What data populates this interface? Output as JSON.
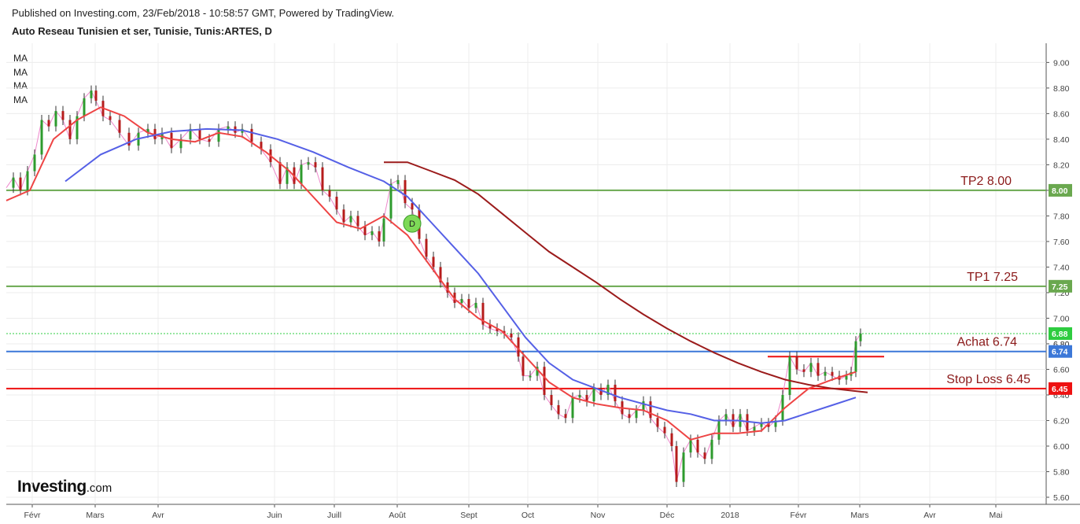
{
  "header": {
    "published": "Published on Investing.com, 23/Feb/2018 - 10:58:57 GMT, Powered by TradingView.",
    "title": "Auto Reseau Tunisien et ser, Tunisie, Tunis:ARTES, D"
  },
  "ma_labels": [
    "MA",
    "MA",
    "MA",
    "MA"
  ],
  "logo": {
    "brand": "Investing",
    "domain": ".com"
  },
  "chart_data": {
    "type": "candlestick",
    "ylim": [
      5.52,
      9.15
    ],
    "y_ticks": [
      "5.60",
      "5.80",
      "6.00",
      "6.20",
      "6.40",
      "6.60",
      "6.80",
      "7.00",
      "7.20",
      "7.40",
      "7.60",
      "7.80",
      "8.00",
      "8.20",
      "8.40",
      "8.60",
      "8.80",
      "9.00"
    ],
    "x_ticks": [
      "Févr",
      "Mars",
      "Avr",
      "Juin",
      "Juill",
      "Août",
      "Sept",
      "Oct",
      "Nov",
      "Déc",
      "2018",
      "Févr",
      "Mars",
      "Avr",
      "Mai"
    ],
    "price_path": [
      [
        0,
        8.02
      ],
      [
        3,
        8.1
      ],
      [
        6,
        8.0
      ],
      [
        9,
        8.15
      ],
      [
        12,
        8.28
      ],
      [
        15,
        8.55
      ],
      [
        18,
        8.5
      ],
      [
        21,
        8.62
      ],
      [
        24,
        8.55
      ],
      [
        27,
        8.4
      ],
      [
        30,
        8.58
      ],
      [
        33,
        8.72
      ],
      [
        36,
        8.78
      ],
      [
        38,
        8.7
      ],
      [
        41,
        8.58
      ],
      [
        44,
        8.55
      ],
      [
        48,
        8.45
      ],
      [
        52,
        8.35
      ],
      [
        56,
        8.45
      ],
      [
        60,
        8.48
      ],
      [
        63,
        8.4
      ],
      [
        66,
        8.45
      ],
      [
        70,
        8.33
      ],
      [
        74,
        8.4
      ],
      [
        78,
        8.48
      ],
      [
        82,
        8.4
      ],
      [
        86,
        8.38
      ],
      [
        90,
        8.48
      ],
      [
        94,
        8.5
      ],
      [
        97,
        8.45
      ],
      [
        100,
        8.48
      ],
      [
        104,
        8.38
      ],
      [
        108,
        8.32
      ],
      [
        112,
        8.22
      ],
      [
        116,
        8.05
      ],
      [
        119,
        8.18
      ],
      [
        122,
        8.05
      ],
      [
        125,
        8.2
      ],
      [
        128,
        8.22
      ],
      [
        131,
        8.18
      ],
      [
        134,
        8.0
      ],
      [
        137,
        7.95
      ],
      [
        140,
        7.85
      ],
      [
        143,
        7.75
      ],
      [
        146,
        7.8
      ],
      [
        149,
        7.72
      ],
      [
        152,
        7.65
      ],
      [
        155,
        7.68
      ],
      [
        158,
        7.6
      ],
      [
        160,
        7.78
      ],
      [
        163,
        8.05
      ],
      [
        166,
        8.08
      ],
      [
        169,
        7.9
      ],
      [
        172,
        7.85
      ],
      [
        175,
        7.62
      ],
      [
        178,
        7.48
      ],
      [
        181,
        7.4
      ],
      [
        184,
        7.28
      ],
      [
        187,
        7.2
      ],
      [
        190,
        7.12
      ],
      [
        193,
        7.15
      ],
      [
        196,
        7.08
      ],
      [
        199,
        7.12
      ],
      [
        202,
        6.95
      ],
      [
        205,
        6.92
      ],
      [
        208,
        6.9
      ],
      [
        211,
        6.88
      ],
      [
        214,
        6.85
      ],
      [
        217,
        6.7
      ],
      [
        219,
        6.55
      ],
      [
        222,
        6.55
      ],
      [
        225,
        6.62
      ],
      [
        228,
        6.4
      ],
      [
        231,
        6.32
      ],
      [
        234,
        6.25
      ],
      [
        237,
        6.22
      ],
      [
        240,
        6.38
      ],
      [
        243,
        6.4
      ],
      [
        246,
        6.35
      ],
      [
        249,
        6.45
      ],
      [
        252,
        6.4
      ],
      [
        255,
        6.48
      ],
      [
        258,
        6.35
      ],
      [
        261,
        6.25
      ],
      [
        264,
        6.22
      ],
      [
        267,
        6.28
      ],
      [
        270,
        6.35
      ],
      [
        273,
        6.22
      ],
      [
        276,
        6.15
      ],
      [
        279,
        6.1
      ],
      [
        282,
        6.0
      ],
      [
        284,
        5.72
      ],
      [
        287,
        5.95
      ],
      [
        290,
        6.05
      ],
      [
        293,
        5.95
      ],
      [
        296,
        5.9
      ],
      [
        299,
        6.05
      ],
      [
        302,
        6.2
      ],
      [
        305,
        6.25
      ],
      [
        308,
        6.15
      ],
      [
        311,
        6.25
      ],
      [
        314,
        6.12
      ],
      [
        317,
        6.15
      ],
      [
        320,
        6.18
      ],
      [
        323,
        6.15
      ],
      [
        326,
        6.2
      ],
      [
        329,
        6.4
      ],
      [
        332,
        6.7
      ],
      [
        335,
        6.6
      ],
      [
        338,
        6.58
      ],
      [
        341,
        6.65
      ],
      [
        344,
        6.55
      ],
      [
        347,
        6.58
      ],
      [
        350,
        6.55
      ],
      [
        353,
        6.52
      ],
      [
        356,
        6.55
      ],
      [
        358,
        6.58
      ],
      [
        360,
        6.82
      ],
      [
        362,
        6.88
      ]
    ],
    "moving_averages": [
      {
        "name": "MA",
        "color": "#ee4444",
        "points": [
          [
            0,
            7.92
          ],
          [
            10,
            8.0
          ],
          [
            20,
            8.4
          ],
          [
            30,
            8.55
          ],
          [
            40,
            8.65
          ],
          [
            50,
            8.58
          ],
          [
            60,
            8.45
          ],
          [
            70,
            8.4
          ],
          [
            80,
            8.38
          ],
          [
            90,
            8.45
          ],
          [
            100,
            8.42
          ],
          [
            110,
            8.3
          ],
          [
            120,
            8.15
          ],
          [
            130,
            7.95
          ],
          [
            140,
            7.75
          ],
          [
            150,
            7.7
          ],
          [
            160,
            7.8
          ],
          [
            170,
            7.65
          ],
          [
            180,
            7.4
          ],
          [
            190,
            7.15
          ],
          [
            200,
            7.0
          ],
          [
            210,
            6.9
          ],
          [
            220,
            6.7
          ],
          [
            230,
            6.5
          ],
          [
            240,
            6.38
          ],
          [
            250,
            6.33
          ],
          [
            260,
            6.3
          ],
          [
            270,
            6.28
          ],
          [
            280,
            6.2
          ],
          [
            290,
            6.05
          ],
          [
            300,
            6.1
          ],
          [
            310,
            6.1
          ],
          [
            320,
            6.12
          ],
          [
            330,
            6.3
          ],
          [
            340,
            6.45
          ],
          [
            350,
            6.52
          ],
          [
            360,
            6.58
          ]
        ]
      },
      {
        "name": "MA",
        "color": "#5560e6",
        "points": [
          [
            25,
            8.07
          ],
          [
            40,
            8.28
          ],
          [
            55,
            8.4
          ],
          [
            70,
            8.46
          ],
          [
            85,
            8.48
          ],
          [
            100,
            8.47
          ],
          [
            115,
            8.4
          ],
          [
            130,
            8.3
          ],
          [
            145,
            8.18
          ],
          [
            160,
            8.07
          ],
          [
            170,
            7.95
          ],
          [
            180,
            7.75
          ],
          [
            190,
            7.55
          ],
          [
            200,
            7.35
          ],
          [
            210,
            7.1
          ],
          [
            220,
            6.85
          ],
          [
            230,
            6.65
          ],
          [
            240,
            6.52
          ],
          [
            250,
            6.45
          ],
          [
            260,
            6.38
          ],
          [
            270,
            6.33
          ],
          [
            280,
            6.28
          ],
          [
            290,
            6.25
          ],
          [
            300,
            6.2
          ],
          [
            310,
            6.2
          ],
          [
            320,
            6.18
          ],
          [
            330,
            6.2
          ],
          [
            340,
            6.26
          ],
          [
            350,
            6.32
          ],
          [
            360,
            6.38
          ]
        ]
      },
      {
        "name": "MA",
        "color": "#9b1b1b",
        "points": [
          [
            160,
            8.22
          ],
          [
            170,
            8.22
          ],
          [
            180,
            8.15
          ],
          [
            190,
            8.08
          ],
          [
            200,
            7.97
          ],
          [
            210,
            7.82
          ],
          [
            220,
            7.67
          ],
          [
            230,
            7.52
          ],
          [
            240,
            7.4
          ],
          [
            250,
            7.28
          ],
          [
            260,
            7.15
          ],
          [
            270,
            7.03
          ],
          [
            280,
            6.92
          ],
          [
            290,
            6.82
          ],
          [
            300,
            6.73
          ],
          [
            310,
            6.65
          ],
          [
            320,
            6.58
          ],
          [
            330,
            6.52
          ],
          [
            340,
            6.48
          ],
          [
            350,
            6.45
          ],
          [
            360,
            6.43
          ],
          [
            365,
            6.42
          ]
        ]
      }
    ],
    "levels": [
      {
        "label": "TP2 8.00",
        "value": 8.0,
        "tag": "8.00",
        "color": "#6aa84f",
        "text_color": "#8b1a1a"
      },
      {
        "label": "TP1 7.25",
        "value": 7.25,
        "tag": "7.25",
        "color": "#6aa84f",
        "text_color": "#8b1a1a"
      },
      {
        "label": "Achat 6.74",
        "value": 6.74,
        "tag": "6.74",
        "color": "#3c78d8",
        "text_color": "#8b1a1a"
      },
      {
        "label": "Stop Loss 6.45",
        "value": 6.45,
        "tag": "6.45",
        "color": "#ee1111",
        "text_color": "#8b1a1a"
      }
    ],
    "last_price": {
      "value": 6.88,
      "tag": "6.88",
      "color": "#2ecc40"
    },
    "extra_tick": "6.80",
    "marker": {
      "label": "D",
      "x_day": 172,
      "value": 7.74
    }
  }
}
